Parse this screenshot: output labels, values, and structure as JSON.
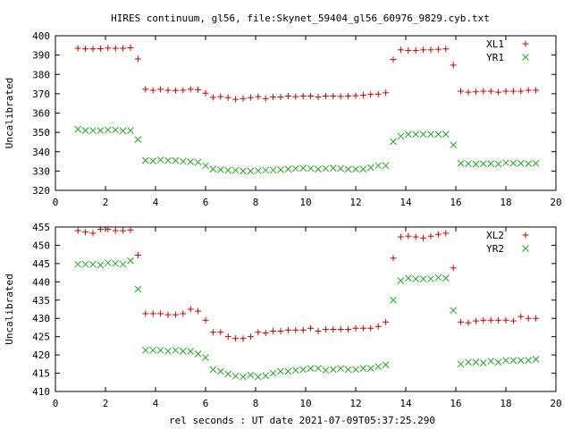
{
  "page": {
    "title": "HIRES continuum, gl56, file:Skynet_59404_gl56_60976_9829.cyb.txt",
    "xlabel": "rel seconds : UT date 2021-07-09T05:37:25.290"
  },
  "colors": {
    "red": "#cc0000",
    "green": "#22aa22",
    "axis": "#000000"
  },
  "chart_data": [
    {
      "type": "scatter",
      "ylabel": "Uncalibrated",
      "xlim": [
        0,
        20
      ],
      "ylim": [
        320,
        400
      ],
      "xticks": [
        0,
        2,
        4,
        6,
        8,
        10,
        12,
        14,
        16,
        18,
        20
      ],
      "yticks": [
        320,
        330,
        340,
        350,
        360,
        370,
        380,
        390,
        400
      ],
      "legend": "top-right",
      "series": [
        {
          "name": "XL1",
          "marker": "plus",
          "color": "#cc0000",
          "points": [
            [
              0.9,
              393.5
            ],
            [
              1.2,
              393.2
            ],
            [
              1.5,
              393.2
            ],
            [
              1.8,
              393.3
            ],
            [
              2.1,
              393.6
            ],
            [
              2.4,
              393.5
            ],
            [
              2.7,
              393.5
            ],
            [
              3.0,
              393.8
            ],
            [
              3.3,
              388.0
            ],
            [
              3.6,
              372.3
            ],
            [
              3.9,
              371.8
            ],
            [
              4.2,
              372.3
            ],
            [
              4.5,
              371.8
            ],
            [
              4.8,
              371.7
            ],
            [
              5.1,
              371.8
            ],
            [
              5.4,
              372.3
            ],
            [
              5.7,
              372.1
            ],
            [
              6.0,
              370.3
            ],
            [
              6.3,
              368.1
            ],
            [
              6.6,
              368.5
            ],
            [
              6.9,
              368.0
            ],
            [
              7.2,
              367.1
            ],
            [
              7.5,
              367.5
            ],
            [
              7.8,
              368.0
            ],
            [
              8.1,
              368.5
            ],
            [
              8.4,
              367.5
            ],
            [
              8.7,
              368.3
            ],
            [
              9.0,
              368.3
            ],
            [
              9.3,
              368.8
            ],
            [
              9.6,
              368.5
            ],
            [
              9.9,
              368.8
            ],
            [
              10.2,
              368.8
            ],
            [
              10.5,
              368.3
            ],
            [
              10.8,
              368.8
            ],
            [
              11.1,
              368.8
            ],
            [
              11.4,
              368.6
            ],
            [
              11.7,
              368.8
            ],
            [
              12.0,
              369.0
            ],
            [
              12.3,
              369.3
            ],
            [
              12.6,
              369.6
            ],
            [
              12.9,
              369.8
            ],
            [
              13.2,
              370.5
            ],
            [
              13.5,
              387.7
            ],
            [
              13.8,
              392.7
            ],
            [
              14.1,
              392.4
            ],
            [
              14.4,
              392.4
            ],
            [
              14.7,
              392.7
            ],
            [
              15.0,
              392.7
            ],
            [
              15.3,
              393.0
            ],
            [
              15.6,
              393.2
            ],
            [
              15.9,
              384.8
            ],
            [
              16.2,
              371.3
            ],
            [
              16.5,
              370.8
            ],
            [
              16.8,
              371.0
            ],
            [
              17.1,
              371.3
            ],
            [
              17.4,
              371.3
            ],
            [
              17.7,
              370.8
            ],
            [
              18.0,
              371.3
            ],
            [
              18.3,
              371.3
            ],
            [
              18.6,
              371.3
            ],
            [
              18.9,
              371.8
            ],
            [
              19.2,
              371.8
            ]
          ]
        },
        {
          "name": "YR1",
          "marker": "cross",
          "color": "#22aa22",
          "points": [
            [
              0.9,
              351.6
            ],
            [
              1.2,
              351.0
            ],
            [
              1.5,
              351.0
            ],
            [
              1.8,
              351.0
            ],
            [
              2.1,
              351.3
            ],
            [
              2.4,
              351.3
            ],
            [
              2.7,
              350.8
            ],
            [
              3.0,
              351.0
            ],
            [
              3.3,
              346.3
            ],
            [
              3.6,
              335.5
            ],
            [
              3.9,
              335.2
            ],
            [
              4.2,
              335.8
            ],
            [
              4.5,
              335.5
            ],
            [
              4.8,
              335.5
            ],
            [
              5.1,
              335.0
            ],
            [
              5.4,
              334.8
            ],
            [
              5.7,
              334.6
            ],
            [
              6.0,
              332.8
            ],
            [
              6.3,
              331.0
            ],
            [
              6.6,
              330.7
            ],
            [
              6.9,
              330.4
            ],
            [
              7.2,
              330.4
            ],
            [
              7.5,
              330.0
            ],
            [
              7.8,
              330.0
            ],
            [
              8.1,
              330.2
            ],
            [
              8.4,
              330.5
            ],
            [
              8.7,
              330.5
            ],
            [
              9.0,
              330.7
            ],
            [
              9.3,
              331.0
            ],
            [
              9.6,
              331.3
            ],
            [
              9.9,
              331.5
            ],
            [
              10.2,
              331.3
            ],
            [
              10.5,
              331.0
            ],
            [
              10.8,
              331.3
            ],
            [
              11.1,
              331.5
            ],
            [
              11.4,
              331.3
            ],
            [
              11.7,
              331.0
            ],
            [
              12.0,
              331.0
            ],
            [
              12.3,
              331.0
            ],
            [
              12.6,
              331.8
            ],
            [
              12.9,
              332.8
            ],
            [
              13.2,
              332.8
            ],
            [
              13.5,
              345.2
            ],
            [
              13.8,
              348.0
            ],
            [
              14.1,
              349.0
            ],
            [
              14.4,
              349.0
            ],
            [
              14.7,
              349.0
            ],
            [
              15.0,
              349.0
            ],
            [
              15.3,
              349.0
            ],
            [
              15.6,
              349.0
            ],
            [
              15.9,
              343.5
            ],
            [
              16.2,
              334.0
            ],
            [
              16.5,
              333.8
            ],
            [
              16.8,
              333.6
            ],
            [
              17.1,
              333.8
            ],
            [
              17.4,
              333.8
            ],
            [
              17.7,
              333.6
            ],
            [
              18.0,
              334.3
            ],
            [
              18.3,
              334.0
            ],
            [
              18.6,
              334.0
            ],
            [
              18.9,
              333.8
            ],
            [
              19.2,
              334.0
            ]
          ]
        }
      ]
    },
    {
      "type": "scatter",
      "ylabel": "Uncalibrated",
      "xlim": [
        0,
        20
      ],
      "ylim": [
        410,
        455
      ],
      "xticks": [
        0,
        2,
        4,
        6,
        8,
        10,
        12,
        14,
        16,
        18,
        20
      ],
      "yticks": [
        410,
        415,
        420,
        425,
        430,
        435,
        440,
        445,
        450,
        455
      ],
      "legend": "top-right",
      "series": [
        {
          "name": "XL2",
          "marker": "plus",
          "color": "#cc0000",
          "points": [
            [
              0.9,
              454.0
            ],
            [
              1.2,
              453.6
            ],
            [
              1.5,
              453.3
            ],
            [
              1.8,
              454.4
            ],
            [
              2.1,
              454.4
            ],
            [
              2.4,
              454.0
            ],
            [
              2.7,
              454.0
            ],
            [
              3.0,
              454.2
            ],
            [
              3.3,
              447.3
            ],
            [
              3.6,
              431.3
            ],
            [
              3.9,
              431.3
            ],
            [
              4.2,
              431.3
            ],
            [
              4.5,
              431.0
            ],
            [
              4.8,
              431.0
            ],
            [
              5.1,
              431.3
            ],
            [
              5.4,
              432.5
            ],
            [
              5.7,
              432.0
            ],
            [
              6.0,
              429.5
            ],
            [
              6.3,
              426.2
            ],
            [
              6.6,
              426.2
            ],
            [
              6.9,
              425.0
            ],
            [
              7.2,
              424.5
            ],
            [
              7.5,
              424.5
            ],
            [
              7.8,
              425.0
            ],
            [
              8.1,
              426.2
            ],
            [
              8.4,
              426.0
            ],
            [
              8.7,
              426.5
            ],
            [
              9.0,
              426.5
            ],
            [
              9.3,
              426.8
            ],
            [
              9.6,
              426.8
            ],
            [
              9.9,
              426.8
            ],
            [
              10.2,
              427.3
            ],
            [
              10.5,
              426.5
            ],
            [
              10.8,
              427.0
            ],
            [
              11.1,
              427.0
            ],
            [
              11.4,
              427.0
            ],
            [
              11.7,
              427.0
            ],
            [
              12.0,
              427.3
            ],
            [
              12.3,
              427.3
            ],
            [
              12.6,
              427.3
            ],
            [
              12.9,
              427.8
            ],
            [
              13.2,
              429.0
            ],
            [
              13.5,
              446.5
            ],
            [
              13.8,
              452.3
            ],
            [
              14.1,
              452.5
            ],
            [
              14.4,
              452.3
            ],
            [
              14.7,
              452.0
            ],
            [
              15.0,
              452.5
            ],
            [
              15.3,
              453.0
            ],
            [
              15.6,
              453.3
            ],
            [
              15.9,
              443.8
            ],
            [
              16.2,
              429.0
            ],
            [
              16.5,
              428.8
            ],
            [
              16.8,
              429.3
            ],
            [
              17.1,
              429.5
            ],
            [
              17.4,
              429.5
            ],
            [
              17.7,
              429.5
            ],
            [
              18.0,
              429.5
            ],
            [
              18.3,
              429.3
            ],
            [
              18.6,
              430.5
            ],
            [
              18.9,
              430.0
            ],
            [
              19.2,
              430.0
            ]
          ]
        },
        {
          "name": "YR2",
          "marker": "cross",
          "color": "#22aa22",
          "points": [
            [
              0.9,
              444.8
            ],
            [
              1.2,
              444.8
            ],
            [
              1.5,
              444.8
            ],
            [
              1.8,
              444.6
            ],
            [
              2.1,
              445.2
            ],
            [
              2.4,
              445.0
            ],
            [
              2.7,
              444.8
            ],
            [
              3.0,
              445.8
            ],
            [
              3.3,
              438.0
            ],
            [
              3.6,
              421.3
            ],
            [
              3.9,
              421.3
            ],
            [
              4.2,
              421.3
            ],
            [
              4.5,
              421.0
            ],
            [
              4.8,
              421.3
            ],
            [
              5.1,
              421.0
            ],
            [
              5.4,
              421.0
            ],
            [
              5.7,
              420.3
            ],
            [
              6.0,
              419.3
            ],
            [
              6.3,
              416.0
            ],
            [
              6.6,
              415.5
            ],
            [
              6.9,
              414.8
            ],
            [
              7.2,
              414.2
            ],
            [
              7.5,
              414.0
            ],
            [
              7.8,
              414.5
            ],
            [
              8.1,
              414.0
            ],
            [
              8.4,
              414.3
            ],
            [
              8.7,
              415.0
            ],
            [
              9.0,
              415.5
            ],
            [
              9.3,
              415.5
            ],
            [
              9.6,
              415.8
            ],
            [
              9.9,
              416.0
            ],
            [
              10.2,
              416.3
            ],
            [
              10.5,
              416.3
            ],
            [
              10.8,
              415.8
            ],
            [
              11.1,
              416.0
            ],
            [
              11.4,
              416.3
            ],
            [
              11.7,
              416.0
            ],
            [
              12.0,
              416.0
            ],
            [
              12.3,
              416.3
            ],
            [
              12.6,
              416.3
            ],
            [
              12.9,
              416.8
            ],
            [
              13.2,
              417.3
            ],
            [
              13.5,
              435.0
            ],
            [
              13.8,
              440.3
            ],
            [
              14.1,
              441.0
            ],
            [
              14.4,
              440.8
            ],
            [
              14.7,
              440.8
            ],
            [
              15.0,
              440.8
            ],
            [
              15.3,
              441.2
            ],
            [
              15.6,
              441.0
            ],
            [
              15.9,
              432.2
            ],
            [
              16.2,
              417.5
            ],
            [
              16.5,
              418.0
            ],
            [
              16.8,
              418.0
            ],
            [
              17.1,
              417.8
            ],
            [
              17.4,
              418.3
            ],
            [
              17.7,
              418.0
            ],
            [
              18.0,
              418.5
            ],
            [
              18.3,
              418.5
            ],
            [
              18.6,
              418.5
            ],
            [
              18.9,
              418.5
            ],
            [
              19.2,
              418.8
            ]
          ]
        }
      ]
    }
  ]
}
